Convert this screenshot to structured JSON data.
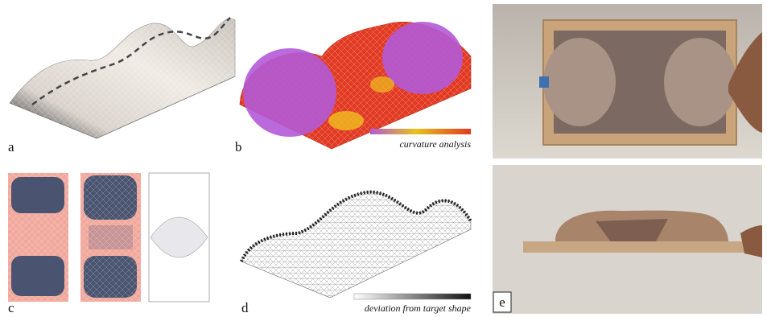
{
  "panels": [
    {
      "label": "a"
    },
    {
      "label": "b",
      "caption": "curvature analysis"
    },
    {
      "label": "c"
    },
    {
      "label": "d",
      "caption": "deviation from target shape"
    },
    {
      "label": "e"
    }
  ]
}
